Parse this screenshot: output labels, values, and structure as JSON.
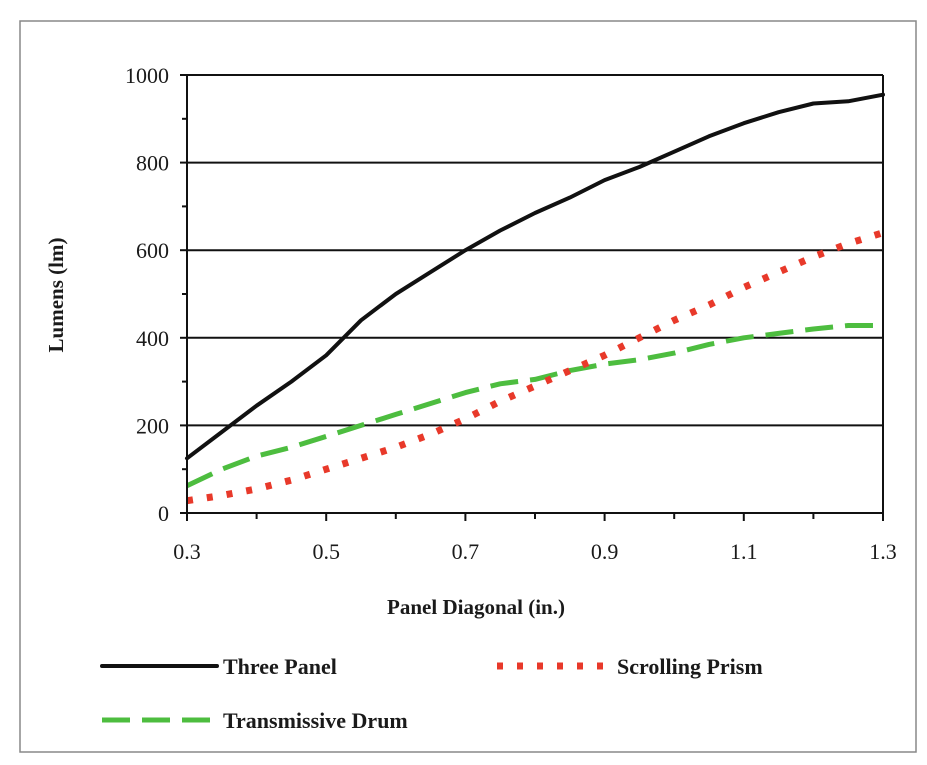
{
  "chart_data": {
    "type": "line",
    "title": "",
    "xlabel": "Panel Diagonal (in.)",
    "ylabel": "Lumens (lm)",
    "xlim": [
      0.3,
      1.3
    ],
    "ylim": [
      0,
      1000
    ],
    "xticks": [
      "0.3",
      "0.5",
      "0.7",
      "0.9",
      "1.1",
      "1.3"
    ],
    "yticks": [
      "0",
      "200",
      "400",
      "600",
      "800",
      "1000"
    ],
    "grid": "horizontal at 200, 400, 600, 800, 1000",
    "legend_position": "bottom",
    "series": [
      {
        "name": "Three Panel",
        "color": "#111111",
        "style": "solid",
        "x": [
          0.3,
          0.35,
          0.4,
          0.45,
          0.5,
          0.55,
          0.6,
          0.65,
          0.7,
          0.75,
          0.8,
          0.85,
          0.9,
          0.95,
          1.0,
          1.05,
          1.1,
          1.15,
          1.2,
          1.25,
          1.3
        ],
        "y": [
          125,
          185,
          245,
          300,
          360,
          440,
          500,
          550,
          600,
          645,
          685,
          720,
          760,
          790,
          825,
          860,
          890,
          915,
          935,
          940,
          955
        ]
      },
      {
        "name": "Scrolling Prism",
        "color": "#e8392a",
        "style": "dotted",
        "x": [
          0.3,
          0.35,
          0.4,
          0.45,
          0.5,
          0.55,
          0.6,
          0.65,
          0.7,
          0.75,
          0.8,
          0.85,
          0.9,
          0.95,
          1.0,
          1.05,
          1.1,
          1.15,
          1.2,
          1.25,
          1.3
        ],
        "y": [
          28,
          40,
          55,
          75,
          100,
          125,
          150,
          180,
          215,
          255,
          290,
          325,
          360,
          400,
          440,
          475,
          515,
          550,
          585,
          615,
          640
        ]
      },
      {
        "name": "Transmissive Drum",
        "color": "#4dbd3f",
        "style": "dashed",
        "x": [
          0.3,
          0.35,
          0.4,
          0.45,
          0.5,
          0.55,
          0.6,
          0.65,
          0.7,
          0.75,
          0.8,
          0.85,
          0.9,
          0.95,
          1.0,
          1.05,
          1.1,
          1.15,
          1.2,
          1.25,
          1.3
        ],
        "y": [
          62,
          100,
          130,
          150,
          175,
          200,
          225,
          250,
          275,
          295,
          305,
          325,
          340,
          350,
          365,
          385,
          400,
          410,
          420,
          428,
          428
        ]
      }
    ]
  }
}
